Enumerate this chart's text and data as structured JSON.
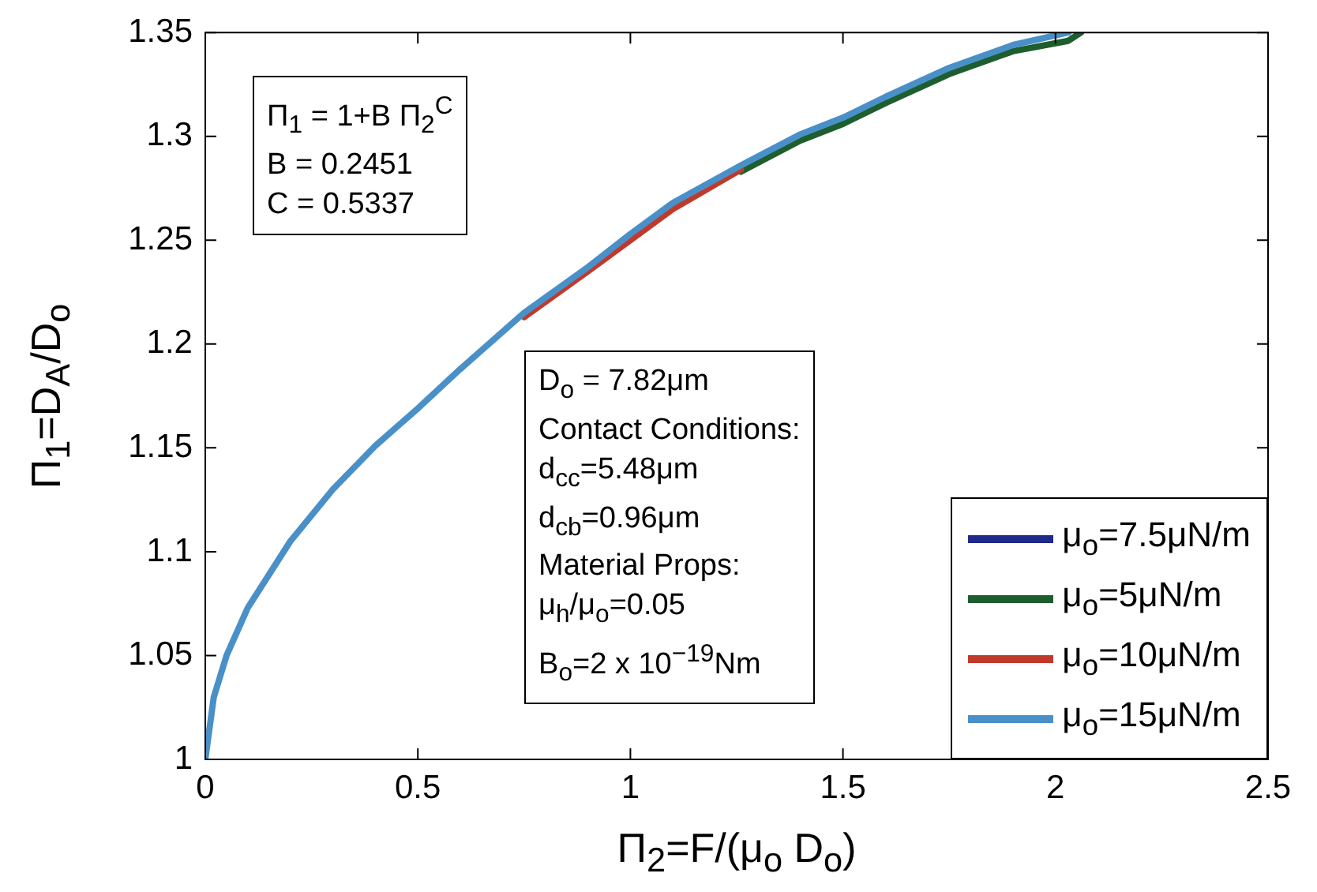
{
  "chart_data": {
    "type": "line",
    "xlabel": "Π$_{2}$=F/(μ$_{o}$ D$_{o}$)",
    "ylabel": "Π$_{1}$=D$_{A}$/D$_{o}$",
    "xlim": [
      0,
      2.5
    ],
    "xticks": [
      0,
      0.5,
      1,
      1.5,
      2,
      2.5
    ],
    "ylim": [
      1,
      1.35
    ],
    "yticks": [
      1,
      1.05,
      1.1,
      1.15,
      1.2,
      1.25,
      1.3,
      1.35
    ],
    "legend": "bottom right",
    "marker": "none",
    "line_style": "solid",
    "annotations": [
      "Π$_{1}$ = 1+B Π$_{2}$$^{C}$\nB = 0.2451\nC = 0.5337",
      "D$_{o}$ = 7.82μm\nContact Conditions:\nd$_{cc}$=5.48μm\nd$_{cb}$=0.96μm\nMaterial Props:\nμ$_{h}$/μ$_{o}$=0.05\nB$_{o}$=2 x 10$^{−19}$Nm"
    ],
    "series": [
      {
        "name": "μ$_{o}$=7.5μN/m",
        "color": "#1f2a8a"
      },
      {
        "name": "μ$_{o}$=5μN/m",
        "color": "#1e5e2e",
        "x": [
          1.26,
          1.4,
          1.5,
          1.6,
          1.75,
          1.9,
          2.03,
          2.06
        ],
        "values": [
          1.283,
          1.298,
          1.306,
          1.316,
          1.33,
          1.341,
          1.346,
          1.35
        ]
      },
      {
        "name": "μ$_{o}$=10μN/m",
        "color": "#c0392b",
        "x": [
          0.75,
          0.9,
          1,
          1.1,
          1.26
        ],
        "values": [
          1.213,
          1.235,
          1.25,
          1.265,
          1.284
        ]
      },
      {
        "name": "μ$_{o}$=15μN/m",
        "color": "#4a90c8",
        "x": [
          0,
          0.02,
          0.05,
          0.1,
          0.2,
          0.3,
          0.4,
          0.5,
          0.6,
          0.75,
          0.9,
          1,
          1.1,
          1.26,
          1.4,
          1.5,
          1.6,
          1.75,
          1.9,
          2.03
        ],
        "values": [
          1,
          1.03,
          1.05,
          1.073,
          1.105,
          1.13,
          1.151,
          1.169,
          1.188,
          1.215,
          1.237,
          1.253,
          1.268,
          1.286,
          1.301,
          1.309,
          1.319,
          1.333,
          1.344,
          1.35
        ]
      }
    ]
  }
}
